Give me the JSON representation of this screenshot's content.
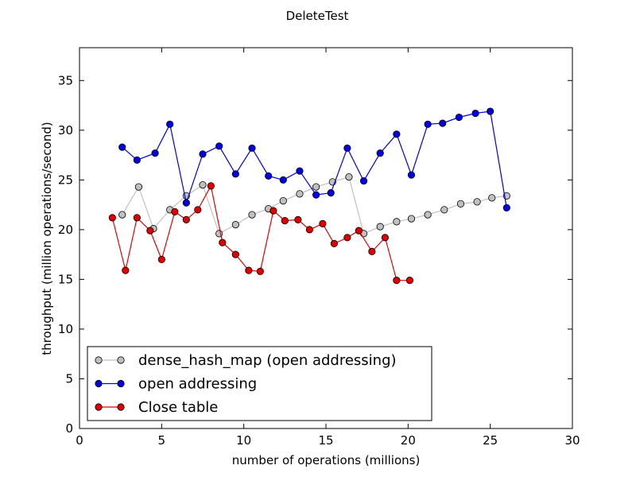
{
  "chart_data": {
    "type": "line",
    "title": "DeleteTest",
    "xlabel": "number of operations (millions)",
    "ylabel": "throughput (million operations/second)",
    "xlim": [
      0,
      30
    ],
    "ylim": [
      0,
      38.3
    ],
    "xticks": [
      "0",
      "5",
      "10",
      "15",
      "20",
      "25",
      "30"
    ],
    "yticks": [
      "0",
      "5",
      "10",
      "15",
      "20",
      "25",
      "30",
      "35"
    ],
    "grid": false,
    "legend_position": "lower-left",
    "series": [
      {
        "name": "dense_hash_map (open addressing)",
        "color": "#c0c0c0",
        "marker_fill": "#c0c0c0",
        "x": [
          2.6,
          3.6,
          4.5,
          5.5,
          6.5,
          7.5,
          8.5,
          9.5,
          10.5,
          11.5,
          12.4,
          13.4,
          14.4,
          15.4,
          16.4,
          17.3,
          18.3,
          19.3,
          20.2,
          21.2,
          22.2,
          23.2,
          24.2,
          25.1,
          26.0
        ],
        "y": [
          21.5,
          24.3,
          20.1,
          22.0,
          23.4,
          24.5,
          19.6,
          20.5,
          21.5,
          22.1,
          22.9,
          23.6,
          24.3,
          24.8,
          25.3,
          19.6,
          20.3,
          20.8,
          21.1,
          21.5,
          22.0,
          22.6,
          22.8,
          23.2,
          23.4
        ]
      },
      {
        "name": "open addressing",
        "color": "#0000e0",
        "marker_fill": "#0000e0",
        "x": [
          2.6,
          3.5,
          4.6,
          5.5,
          6.5,
          7.5,
          8.5,
          9.5,
          10.5,
          11.5,
          12.4,
          13.4,
          14.4,
          15.3,
          16.3,
          17.3,
          18.3,
          19.3,
          20.2,
          21.2,
          22.1,
          23.1,
          24.1,
          25.0,
          26.0
        ],
        "y": [
          28.3,
          27.0,
          27.7,
          30.6,
          22.7,
          27.6,
          28.4,
          25.6,
          28.2,
          25.4,
          25.0,
          25.9,
          23.5,
          23.7,
          28.2,
          24.9,
          27.7,
          29.6,
          25.5,
          30.6,
          30.7,
          31.3,
          31.7,
          31.9,
          22.2
        ]
      },
      {
        "name": "Close table",
        "color": "#e00000",
        "marker_fill": "#e00000",
        "x": [
          2.0,
          2.8,
          3.5,
          4.3,
          5.0,
          5.8,
          6.5,
          7.2,
          8.0,
          8.7,
          9.5,
          10.3,
          11.0,
          11.8,
          12.5,
          13.3,
          14.0,
          14.8,
          15.5,
          16.3,
          17.0,
          17.8,
          18.6,
          19.3,
          20.1
        ],
        "y": [
          21.2,
          15.9,
          21.2,
          19.9,
          17.0,
          21.8,
          21.0,
          22.0,
          24.4,
          18.7,
          17.5,
          15.9,
          15.8,
          21.9,
          20.9,
          21.0,
          20.0,
          20.6,
          18.6,
          19.2,
          19.9,
          17.8,
          19.2,
          14.9,
          14.9
        ]
      }
    ]
  }
}
